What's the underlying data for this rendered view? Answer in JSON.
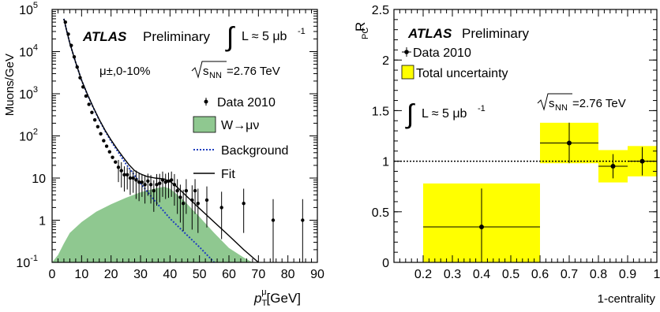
{
  "chart_data": [
    {
      "type": "scatter",
      "panel": "left",
      "ylabel": "Muons/GeV",
      "xlabel_main": "p",
      "xlabel_sub": "T",
      "xlabel_sup": "μ",
      "xlabel_unit": "[GeV]",
      "ylog": true,
      "xlim": [
        0,
        90
      ],
      "ylim": [
        0.1,
        100000
      ],
      "x_ticks": [
        "0",
        "10",
        "20",
        "30",
        "40",
        "50",
        "60",
        "70",
        "80",
        "90"
      ],
      "y_ticks": [
        {
          "base": "10",
          "exp": "-1",
          "v": 0.1
        },
        {
          "base": "1",
          "exp": "",
          "v": 1
        },
        {
          "base": "10",
          "exp": "",
          "v": 10
        },
        {
          "base": "10",
          "exp": "2",
          "v": 100
        },
        {
          "base": "10",
          "exp": "3",
          "v": 1000
        },
        {
          "base": "10",
          "exp": "4",
          "v": 10000
        },
        {
          "base": "10",
          "exp": "5",
          "v": 100000
        }
      ],
      "atlas_label": "ATLAS",
      "prelim_label": "Preliminary",
      "lumi_label": "L ≈ 5 μb",
      "lumi_exp": "-1",
      "centrality_label": "μ±,0-10%",
      "energy_label_pre": "s",
      "energy_label_sub": "NN",
      "energy_label_post": "=2.76 TeV",
      "legend": [
        {
          "name": "Data 2010",
          "kind": "point"
        },
        {
          "name": "W→μν",
          "kind": "fill",
          "color": "#8fc890"
        },
        {
          "name": "Background",
          "kind": "dotted",
          "color": "#1f3fbf"
        },
        {
          "name": "Fit",
          "kind": "line",
          "color": "#000000"
        }
      ],
      "series": [
        {
          "name": "Data 2010",
          "points": [
            [
              4.5,
              50000,
              0
            ],
            [
              5.5,
              26000,
              0
            ],
            [
              6.5,
              14000,
              0
            ],
            [
              7.5,
              7500,
              0
            ],
            [
              8.5,
              4300,
              0
            ],
            [
              9.5,
              2400,
              0
            ],
            [
              10.5,
              1450,
              0
            ],
            [
              11.5,
              880,
              0
            ],
            [
              12.5,
              560,
              0
            ],
            [
              13.5,
              360,
              0
            ],
            [
              14.5,
              240,
              0
            ],
            [
              15.5,
              165,
              0
            ],
            [
              16.5,
              112,
              0
            ],
            [
              17.5,
              77,
              0
            ],
            [
              18.5,
              57,
              0
            ],
            [
              19.5,
              42,
              0
            ],
            [
              20.5,
              31,
              0
            ],
            [
              21.5,
              24,
              0
            ],
            [
              22.5,
              18,
              0.35
            ],
            [
              23.5,
              15,
              0.4
            ],
            [
              24.5,
              12,
              0.4
            ],
            [
              25.5,
              12,
              0.35
            ],
            [
              26.5,
              10,
              0.4
            ],
            [
              27.5,
              10,
              0.35
            ],
            [
              28.5,
              9,
              0.45
            ],
            [
              29.5,
              8,
              0.45
            ],
            [
              30.5,
              8,
              0.35
            ],
            [
              31.5,
              7,
              0.45
            ],
            [
              32.5,
              8.5,
              0.35
            ],
            [
              33.5,
              7,
              0.45
            ],
            [
              34.5,
              5,
              0.5
            ],
            [
              35.5,
              7,
              0.5
            ],
            [
              36.5,
              7.5,
              0.45
            ],
            [
              37.5,
              9,
              0.4
            ],
            [
              38.5,
              8,
              0.4
            ],
            [
              39.5,
              8.5,
              0.4
            ],
            [
              40.5,
              9,
              0.4
            ],
            [
              41.5,
              7,
              0.5
            ],
            [
              42.5,
              5,
              0.55
            ],
            [
              43.5,
              3.5,
              0.6
            ],
            [
              44.5,
              2.5,
              0.65
            ],
            [
              45.5,
              5,
              0.55
            ],
            [
              47.5,
              3,
              0.7
            ],
            [
              48.5,
              5,
              0.55
            ],
            [
              49.5,
              2.5,
              0.7
            ],
            [
              52.5,
              3,
              0.65
            ],
            [
              57.5,
              2,
              0.75
            ],
            [
              65,
              2.5,
              0.7
            ],
            [
              75,
              1,
              1
            ],
            [
              85,
              1,
              1
            ]
          ]
        },
        {
          "name": "W→μν",
          "curve": [
            [
              0,
              0.1
            ],
            [
              2,
              0.15
            ],
            [
              4,
              0.28
            ],
            [
              6,
              0.5
            ],
            [
              10,
              0.9
            ],
            [
              15,
              1.6
            ],
            [
              20,
              2.4
            ],
            [
              25,
              3.4
            ],
            [
              30,
              4.6
            ],
            [
              35,
              5.7
            ],
            [
              38,
              6.2
            ],
            [
              40,
              5.6
            ],
            [
              42,
              4.3
            ],
            [
              45,
              2.8
            ],
            [
              50,
              1.2
            ],
            [
              55,
              0.5
            ],
            [
              60,
              0.22
            ],
            [
              65,
              0.13
            ],
            [
              68,
              0.1
            ]
          ]
        },
        {
          "name": "Background",
          "curve": [
            [
              4,
              60000
            ],
            [
              5,
              30000
            ],
            [
              6,
              16000
            ],
            [
              8,
              5500
            ],
            [
              10,
              2100
            ],
            [
              12,
              950
            ],
            [
              14,
              460
            ],
            [
              16,
              240
            ],
            [
              18,
              130
            ],
            [
              20,
              75
            ],
            [
              25,
              22
            ],
            [
              30,
              7.5
            ],
            [
              35,
              2.8
            ],
            [
              40,
              1.1
            ],
            [
              45,
              0.5
            ],
            [
              50,
              0.23
            ],
            [
              55,
              0.1
            ]
          ]
        },
        {
          "name": "Fit",
          "curve": [
            [
              4,
              60000
            ],
            [
              5,
              30000
            ],
            [
              6,
              16000
            ],
            [
              8,
              5500
            ],
            [
              10,
              2100
            ],
            [
              12,
              960
            ],
            [
              14,
              470
            ],
            [
              16,
              245
            ],
            [
              18,
              135
            ],
            [
              20,
              80
            ],
            [
              22,
              50
            ],
            [
              24,
              32
            ],
            [
              26,
              21
            ],
            [
              28,
              15
            ],
            [
              30,
              12.5
            ],
            [
              32,
              11
            ],
            [
              35,
              10
            ],
            [
              38,
              9.5
            ],
            [
              40,
              8.3
            ],
            [
              42,
              6.5
            ],
            [
              45,
              4.1
            ],
            [
              50,
              1.9
            ],
            [
              55,
              0.9
            ],
            [
              60,
              0.43
            ],
            [
              65,
              0.2
            ],
            [
              70,
              0.1
            ]
          ]
        }
      ]
    },
    {
      "type": "scatter",
      "panel": "right",
      "ylabel_main": "R",
      "ylabel_sub": "PC",
      "xlabel": "1-centrality",
      "xlim": [
        0.1,
        1.0
      ],
      "ylim": [
        0,
        2.5
      ],
      "x_ticks": [
        "0.2",
        "0.3",
        "0.4",
        "0.5",
        "0.6",
        "0.7",
        "0.8",
        "0.9",
        "1"
      ],
      "y_ticks": [
        "0",
        "0.5",
        "1",
        "1.5",
        "2",
        "2.5"
      ],
      "atlas_label": "ATLAS",
      "prelim_label": "Preliminary",
      "lumi_label": "L ≈ 5 μb",
      "lumi_exp": "-1",
      "energy_label_pre": "s",
      "energy_label_sub": "NN",
      "energy_label_post": "=2.76 TeV",
      "legend": [
        {
          "name": "Data 2010",
          "kind": "point"
        },
        {
          "name": "Total uncertainty",
          "kind": "box",
          "color": "#ffff00"
        }
      ],
      "reference_line": 1,
      "points": [
        {
          "x": 0.4,
          "xlo": 0.2,
          "xhi": 0.6,
          "y": 0.35,
          "stat": 0.38,
          "sys_lo": 0.0,
          "sys_hi": 0.78
        },
        {
          "x": 0.7,
          "xlo": 0.6,
          "xhi": 0.8,
          "y": 1.18,
          "stat": 0.2,
          "sys_lo": 0.98,
          "sys_hi": 1.38
        },
        {
          "x": 0.85,
          "xlo": 0.8,
          "xhi": 0.9,
          "y": 0.95,
          "stat": 0.12,
          "sys_lo": 0.79,
          "sys_hi": 1.11
        },
        {
          "x": 0.95,
          "xlo": 0.9,
          "xhi": 1.0,
          "y": 1.0,
          "stat": 0.14,
          "sys_lo": 0.85,
          "sys_hi": 1.15
        }
      ]
    }
  ]
}
